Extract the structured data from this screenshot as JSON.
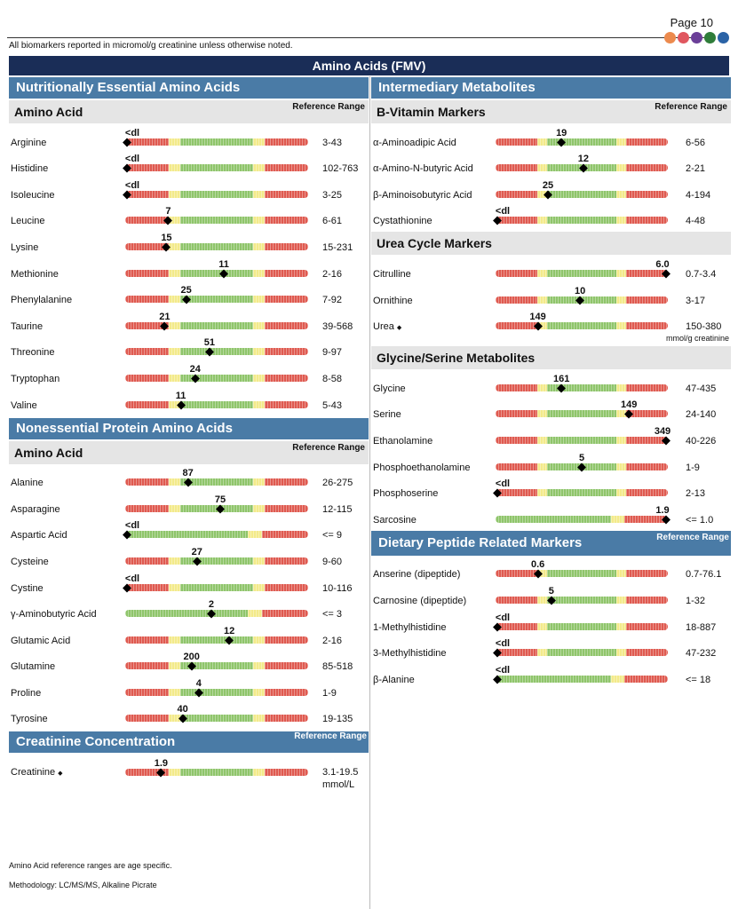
{
  "header": {
    "page_label": "Page 10",
    "units_note": "All biomarkers reported in micromol/g creatinine unless otherwise noted.",
    "dots": [
      {
        "name": "orange-dot",
        "color": "#ec8a4d"
      },
      {
        "name": "red-dot",
        "color": "#e0575f"
      },
      {
        "name": "purple-dot",
        "color": "#6b3f98"
      },
      {
        "name": "green-dot",
        "color": "#2f7d3a"
      },
      {
        "name": "blue-dot",
        "color": "#2b63a6"
      }
    ]
  },
  "title": "Amino Acids (FMV)",
  "reference_range_label": "Reference Range",
  "colors": {
    "red": "#df5a50",
    "yellow": "#f3ea8a",
    "green": "#8fc56b"
  },
  "left": {
    "essential": {
      "title": "Nutritionally Essential Amino Acids",
      "subheader": "Amino Acid",
      "rows": [
        {
          "name": "Arginine",
          "value": "<dl",
          "pos": 0.0,
          "ref": "3-43",
          "zones": "ryg"
        },
        {
          "name": "Histidine",
          "value": "<dl",
          "pos": 0.0,
          "ref": "102-763",
          "zones": "ryg"
        },
        {
          "name": "Isoleucine",
          "value": "<dl",
          "pos": 0.0,
          "ref": "3-25",
          "zones": "ryg"
        },
        {
          "name": "Leucine",
          "value": "7",
          "pos": 0.23,
          "ref": "6-61",
          "zones": "ryg"
        },
        {
          "name": "Lysine",
          "value": "15",
          "pos": 0.22,
          "ref": "15-231",
          "zones": "ryg"
        },
        {
          "name": "Methionine",
          "value": "11",
          "pos": 0.54,
          "ref": "2-16",
          "zones": "ryg"
        },
        {
          "name": "Phenylalanine",
          "value": "25",
          "pos": 0.33,
          "ref": "7-92",
          "zones": "ryg"
        },
        {
          "name": "Taurine",
          "value": "21",
          "pos": 0.21,
          "ref": "39-568",
          "zones": "ryg"
        },
        {
          "name": "Threonine",
          "value": "51",
          "pos": 0.46,
          "ref": "9-97",
          "zones": "ryg"
        },
        {
          "name": "Tryptophan",
          "value": "24",
          "pos": 0.38,
          "ref": "8-58",
          "zones": "ryg"
        },
        {
          "name": "Valine",
          "value": "11",
          "pos": 0.3,
          "ref": "5-43",
          "zones": "ryg"
        }
      ]
    },
    "nonessential": {
      "title": "Nonessential Protein Amino Acids",
      "subheader": "Amino Acid",
      "rows": [
        {
          "name": "Alanine",
          "value": "87",
          "pos": 0.34,
          "ref": "26-275",
          "zones": "ryg"
        },
        {
          "name": "Asparagine",
          "value": "75",
          "pos": 0.52,
          "ref": "12-115",
          "zones": "ryg"
        },
        {
          "name": "Aspartic Acid",
          "value": "<dl",
          "pos": 0.0,
          "ref": "<= 9",
          "zones": "gyr"
        },
        {
          "name": "Cysteine",
          "value": "27",
          "pos": 0.39,
          "ref": "9-60",
          "zones": "ryg"
        },
        {
          "name": "Cystine",
          "value": "<dl",
          "pos": 0.0,
          "ref": "10-116",
          "zones": "ryg"
        },
        {
          "name": "γ-Aminobutyric Acid",
          "value": "2",
          "pos": 0.47,
          "ref": "<= 3",
          "zones": "gyr"
        },
        {
          "name": "Glutamic Acid",
          "value": "12",
          "pos": 0.57,
          "ref": "2-16",
          "zones": "ryg"
        },
        {
          "name": "Glutamine",
          "value": "200",
          "pos": 0.36,
          "ref": "85-518",
          "zones": "ryg"
        },
        {
          "name": "Proline",
          "value": "4",
          "pos": 0.4,
          "ref": "1-9",
          "zones": "ryg"
        },
        {
          "name": "Tyrosine",
          "value": "40",
          "pos": 0.31,
          "ref": "19-135",
          "zones": "ryg"
        }
      ]
    },
    "creatinine": {
      "title": "Creatinine Concentration",
      "row": {
        "name": "Creatinine",
        "symbol": "◆",
        "value": "1.9",
        "pos": 0.19,
        "ref": "3.1-19.5",
        "ref_unit": "mmol/L",
        "zones": "ryg"
      }
    }
  },
  "right": {
    "intermediary_title": "Intermediary Metabolites",
    "b_vitamin": {
      "subheader": "B-Vitamin Markers",
      "rows": [
        {
          "name": "α-Aminoadipic Acid",
          "value": "19",
          "pos": 0.38,
          "ref": "6-56",
          "zones": "ryg"
        },
        {
          "name": "α-Amino-N-butyric Acid",
          "value": "12",
          "pos": 0.51,
          "ref": "2-21",
          "zones": "ryg"
        },
        {
          "name": "β-Aminoisobutyric Acid",
          "value": "25",
          "pos": 0.3,
          "ref": "4-194",
          "zones": "ryg"
        },
        {
          "name": "Cystathionine",
          "value": "<dl",
          "pos": 0.0,
          "ref": "4-48",
          "zones": "ryg"
        }
      ]
    },
    "urea_cycle": {
      "subheader": "Urea Cycle Markers",
      "rows": [
        {
          "name": "Citrulline",
          "value": "6.0",
          "pos": 1.0,
          "ref": "0.7-3.4",
          "zones": "ryg"
        },
        {
          "name": "Ornithine",
          "value": "10",
          "pos": 0.49,
          "ref": "3-17",
          "zones": "ryg"
        },
        {
          "name": "Urea",
          "symbol": "◆",
          "value": "149",
          "pos": 0.24,
          "ref": "150-380",
          "ref_sub": "mmol/g creatinine",
          "zones": "ryg"
        }
      ]
    },
    "glycine_serine": {
      "subheader": "Glycine/Serine Metabolites",
      "rows": [
        {
          "name": "Glycine",
          "value": "161",
          "pos": 0.38,
          "ref": "47-435",
          "zones": "ryg"
        },
        {
          "name": "Serine",
          "value": "149",
          "pos": 0.78,
          "ref": "24-140",
          "zones": "ryg"
        },
        {
          "name": "Ethanolamine",
          "value": "349",
          "pos": 1.0,
          "ref": "40-226",
          "zones": "ryg"
        },
        {
          "name": "Phosphoethanolamine",
          "value": "5",
          "pos": 0.5,
          "ref": "1-9",
          "zones": "ryg"
        },
        {
          "name": "Phosphoserine",
          "value": "<dl",
          "pos": 0.0,
          "ref": "2-13",
          "zones": "ryg"
        },
        {
          "name": "Sarcosine",
          "value": "1.9",
          "pos": 1.0,
          "ref": "<= 1.0",
          "zones": "gyr"
        }
      ]
    },
    "dietary": {
      "title": "Dietary Peptide Related Markers",
      "rows": [
        {
          "name": "Anserine (dipeptide)",
          "value": "0.6",
          "pos": 0.24,
          "ref": "0.7-76.1",
          "zones": "ryg"
        },
        {
          "name": "Carnosine (dipeptide)",
          "value": "5",
          "pos": 0.32,
          "ref": "1-32",
          "zones": "ryg"
        },
        {
          "name": "1-Methylhistidine",
          "value": "<dl",
          "pos": 0.0,
          "ref": "18-887",
          "zones": "ryg"
        },
        {
          "name": "3-Methylhistidine",
          "value": "<dl",
          "pos": 0.0,
          "ref": "47-232",
          "zones": "ryg"
        },
        {
          "name": "β-Alanine",
          "value": "<dl",
          "pos": 0.0,
          "ref": "<= 18",
          "zones": "gyr"
        }
      ]
    }
  },
  "footnotes": {
    "note1": "Amino Acid reference ranges are age specific.",
    "note2": "Methodology: LC/MS/MS, Alkaline Picrate"
  }
}
